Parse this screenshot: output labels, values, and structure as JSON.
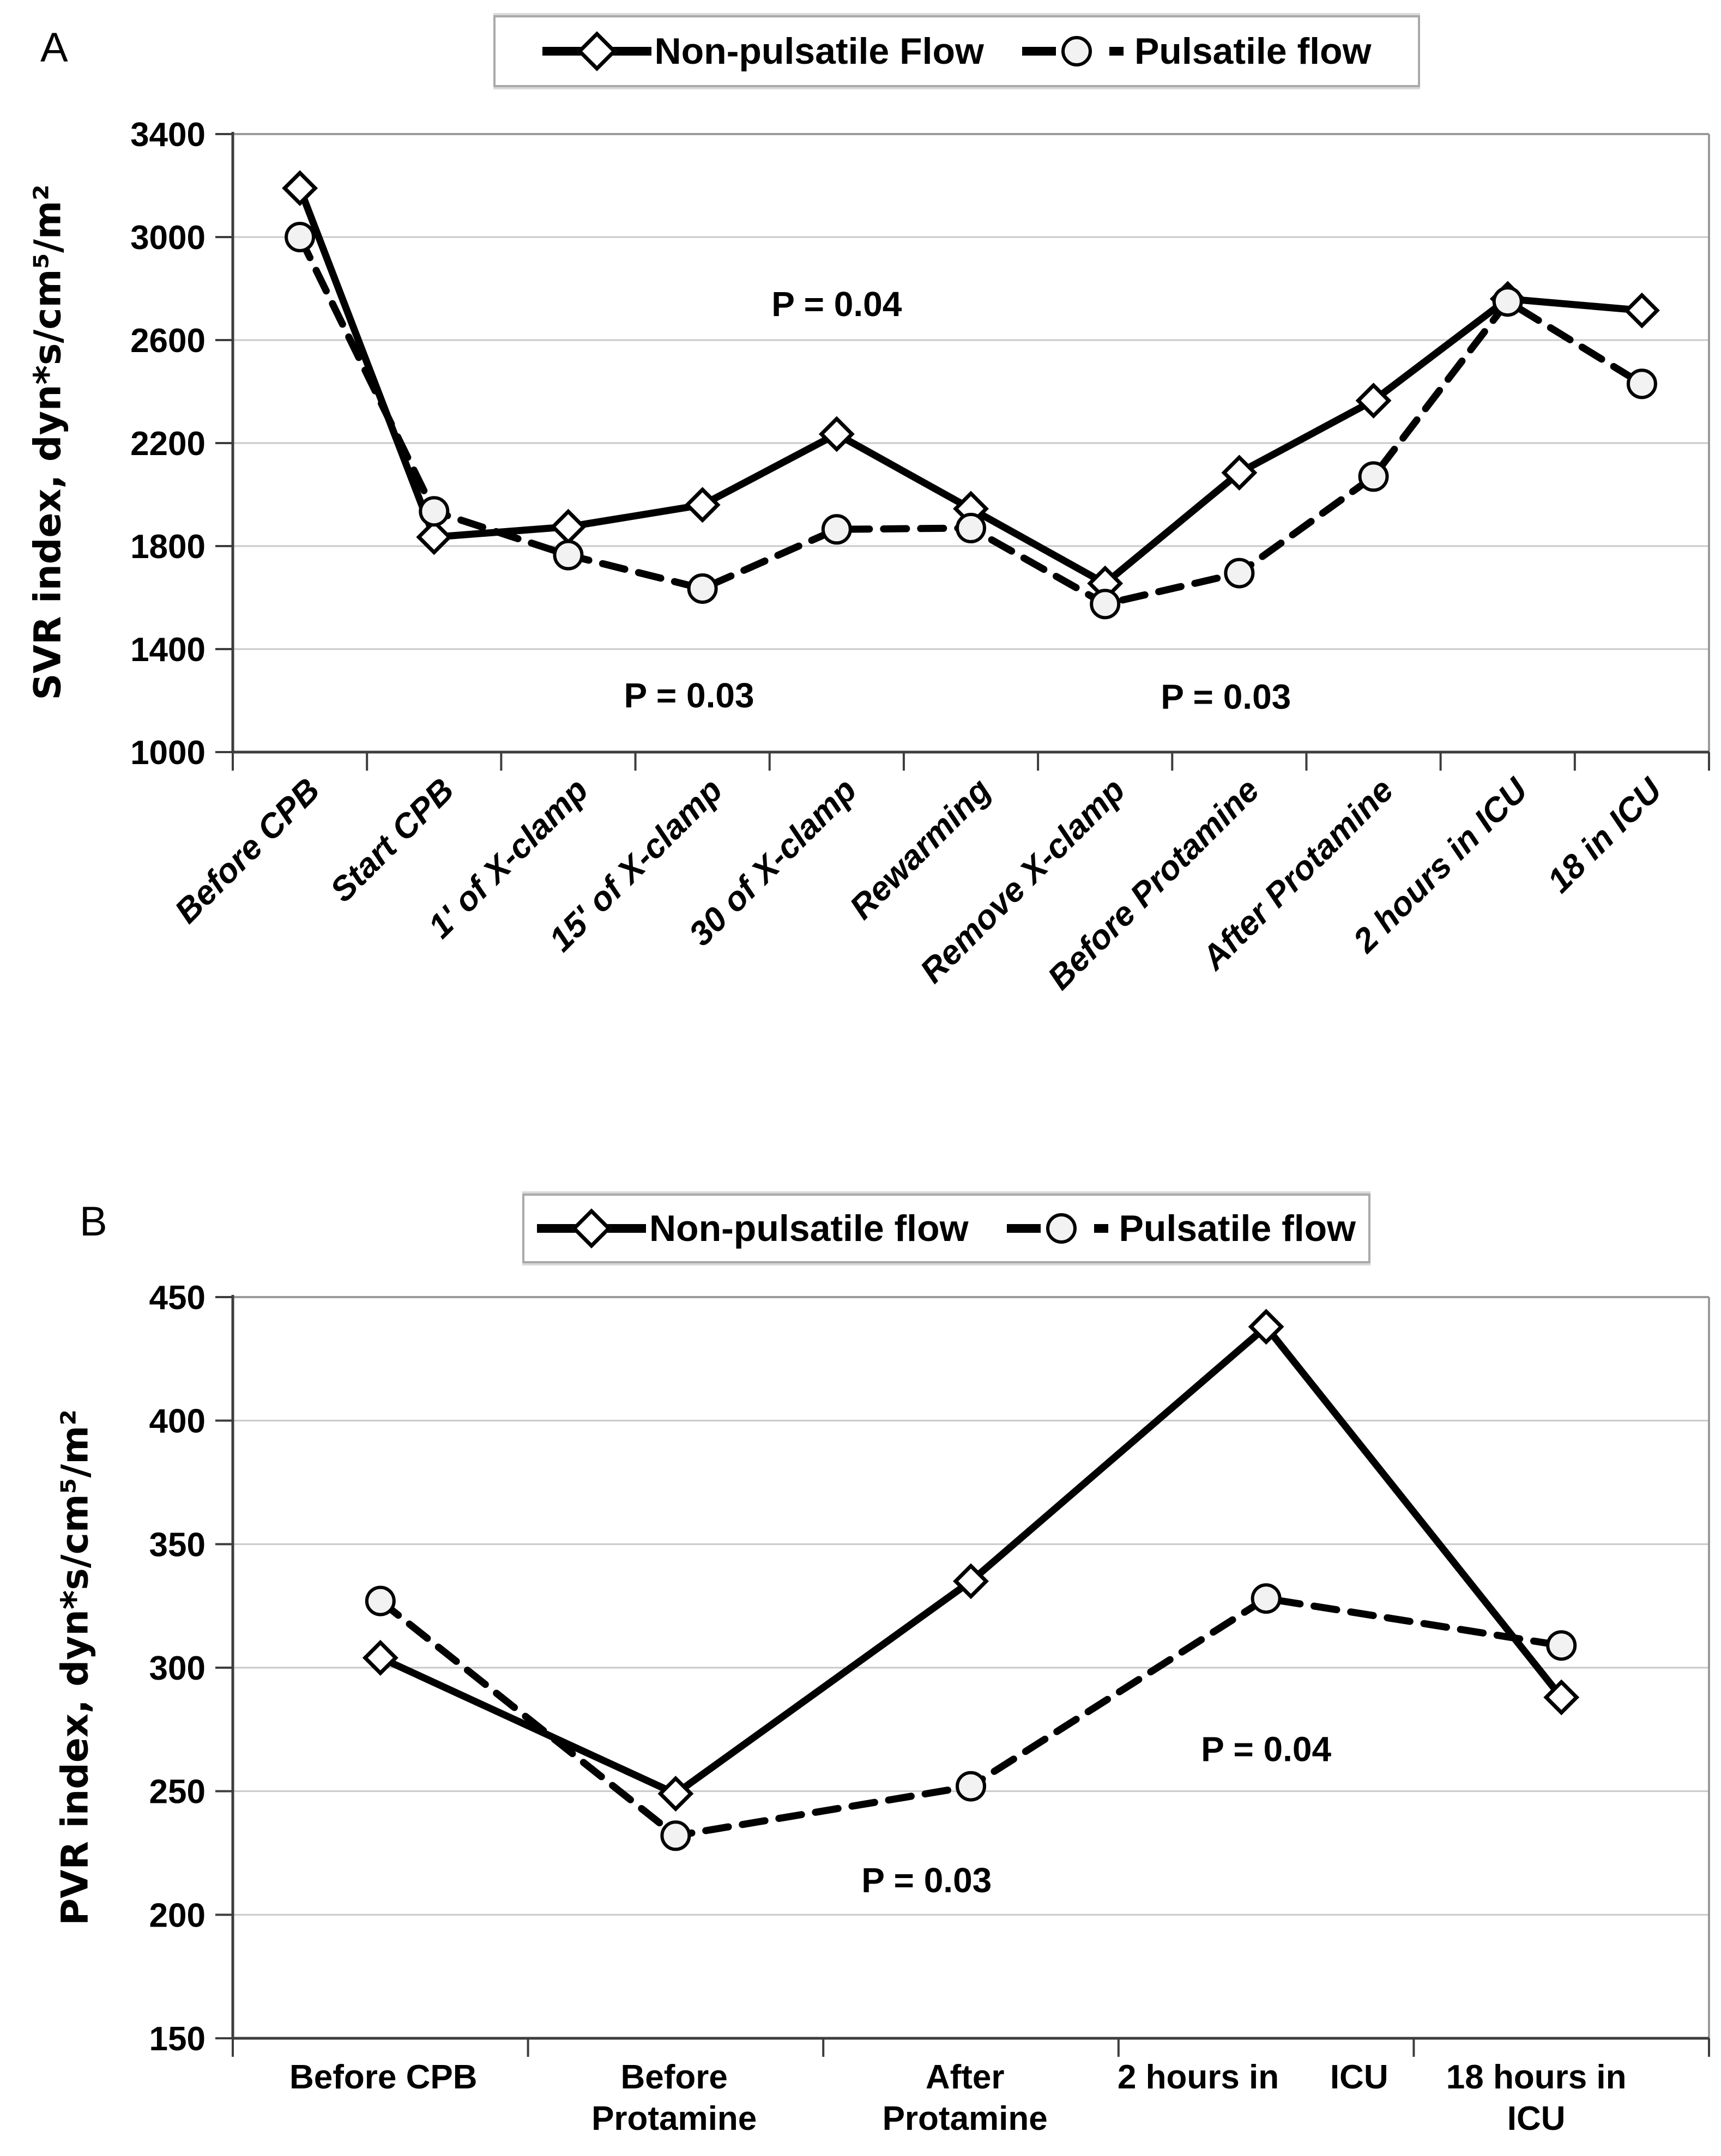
{
  "figure": {
    "panel_a": {
      "label": "A"
    },
    "panel_b": {
      "label": "B"
    }
  },
  "chart_data": [
    {
      "panel": "A",
      "type": "line",
      "title": "",
      "categories": [
        "Before CPB",
        "Start CPB",
        "1' of X-clamp",
        "15' of X-clamp",
        "30 of X-clamp",
        "Rewarming",
        "Remove X-clamp",
        "Before Protamine",
        "After Protamine",
        "2 hours in ICU",
        "18 in ICU"
      ],
      "series": [
        {
          "name": "Non-pulsatile Flow",
          "line": "solid",
          "marker": "diamond",
          "values": [
            3190,
            1835,
            1875,
            1960,
            2235,
            1945,
            1655,
            2085,
            2365,
            2760,
            2715
          ]
        },
        {
          "name": "Pulsatile flow",
          "line": "dashed",
          "marker": "circle",
          "values": [
            3000,
            1935,
            1765,
            1635,
            1865,
            1870,
            1575,
            1695,
            2070,
            2750,
            2430
          ]
        }
      ],
      "xlabel": "",
      "ylabel": "SVR index, dyn*s/cm⁵/m²",
      "ylim": [
        1000,
        3400
      ],
      "ytick_step": 400,
      "grid": true,
      "legend_position": "top-center",
      "annotations": [
        {
          "text": "P = 0.04",
          "cat": 4.0,
          "value": 2740
        },
        {
          "text": "P = 0.03",
          "cat": 2.9,
          "value": 1220
        },
        {
          "text": "P = 0.03",
          "cat": 6.9,
          "value": 1215
        }
      ]
    },
    {
      "panel": "B",
      "type": "line",
      "title": "",
      "categories": [
        "Before CPB",
        "Before Protamine",
        "After Protamine",
        "2 hours in ICU",
        "18 hours in ICU"
      ],
      "x_axis_display_labels": [
        {
          "lines": [
            "Before CPB"
          ],
          "x_frac": 0.102
        },
        {
          "lines": [
            "Before",
            "Protamine"
          ],
          "x_frac": 0.299
        },
        {
          "lines": [
            "After",
            "Protamine"
          ],
          "x_frac": 0.496
        },
        {
          "lines": [
            "2 hours in"
          ],
          "x_frac": 0.654
        },
        {
          "lines": [
            "ICU"
          ],
          "x_frac": 0.763
        },
        {
          "lines": [
            "18 hours in",
            "ICU"
          ],
          "x_frac": 0.883
        }
      ],
      "series": [
        {
          "name": "Non-pulsatile flow",
          "line": "solid",
          "marker": "diamond",
          "values": [
            304,
            249,
            335,
            438,
            288
          ]
        },
        {
          "name": "Pulsatile flow",
          "line": "dashed",
          "marker": "circle",
          "values": [
            327,
            232,
            252,
            328,
            309
          ]
        }
      ],
      "xlabel": "",
      "ylabel": "PVR index, dyn*s/cm⁵/m²",
      "ylim": [
        150,
        450
      ],
      "ytick_step": 50,
      "grid": true,
      "legend_position": "top-center",
      "annotations": [
        {
          "text": "P = 0.03",
          "cat": 1.85,
          "value": 214
        },
        {
          "text": "P = 0.04",
          "cat": 3.0,
          "value": 267
        }
      ]
    }
  ],
  "colors": {
    "series_color": "#000000",
    "gridline": "#c9c9c9",
    "frame": "#9a9a9a",
    "axis": "#3d3d3d",
    "circle_fill": "#f2f2f2",
    "diamond_fill": "#ffffff",
    "background": "#ffffff"
  }
}
